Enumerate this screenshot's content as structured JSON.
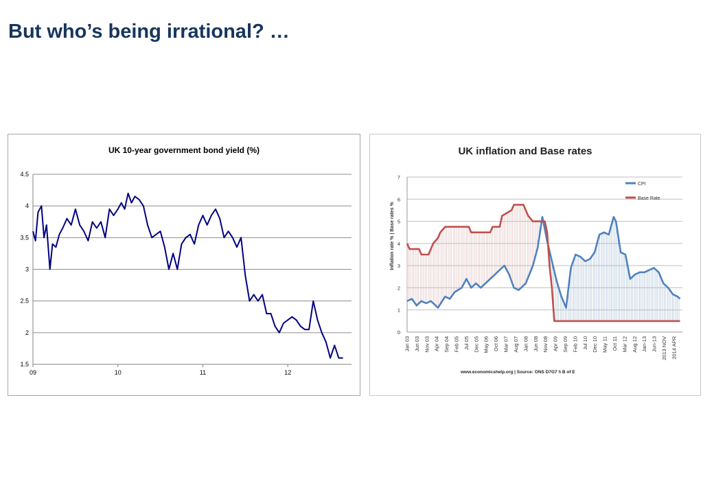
{
  "slide": {
    "title": "But who’s being irrational? …"
  },
  "chart_data": [
    {
      "type": "line",
      "title": "UK 10-year government bond yield (%)",
      "xlabel": "",
      "ylabel": "",
      "x_ticks": [
        "09",
        "10",
        "11",
        "12"
      ],
      "x_tick_values": [
        2009,
        2010,
        2011,
        2012
      ],
      "xlim": [
        2009,
        2012.75
      ],
      "ylim": [
        1.5,
        4.5
      ],
      "y_ticks": [
        "1.5",
        "2",
        "2.5",
        "3",
        "3.5",
        "4",
        "4.5"
      ],
      "y_tick_values": [
        1.5,
        2,
        2.5,
        3,
        3.5,
        4,
        4.5
      ],
      "grid": true,
      "series": [
        {
          "color": "#000080",
          "x": [
            2009.0,
            2009.03,
            2009.06,
            2009.1,
            2009.13,
            2009.16,
            2009.2,
            2009.23,
            2009.27,
            2009.31,
            2009.35,
            2009.4,
            2009.45,
            2009.5,
            2009.55,
            2009.6,
            2009.65,
            2009.7,
            2009.75,
            2009.8,
            2009.85,
            2009.9,
            2009.95,
            2010.0,
            2010.04,
            2010.08,
            2010.12,
            2010.16,
            2010.2,
            2010.25,
            2010.3,
            2010.35,
            2010.4,
            2010.45,
            2010.5,
            2010.55,
            2010.6,
            2010.65,
            2010.7,
            2010.75,
            2010.8,
            2010.85,
            2010.9,
            2010.95,
            2011.0,
            2011.05,
            2011.1,
            2011.15,
            2011.2,
            2011.25,
            2011.3,
            2011.35,
            2011.4,
            2011.45,
            2011.5,
            2011.55,
            2011.6,
            2011.65,
            2011.7,
            2011.75,
            2011.8,
            2011.85,
            2011.9,
            2011.95,
            2012.0,
            2012.05,
            2012.1,
            2012.15,
            2012.2,
            2012.25,
            2012.3,
            2012.35,
            2012.4,
            2012.45,
            2012.5,
            2012.55,
            2012.6,
            2012.65
          ],
          "y": [
            3.6,
            3.45,
            3.9,
            4.0,
            3.5,
            3.7,
            3.0,
            3.4,
            3.35,
            3.55,
            3.65,
            3.8,
            3.7,
            3.95,
            3.7,
            3.6,
            3.45,
            3.75,
            3.65,
            3.75,
            3.5,
            3.95,
            3.85,
            3.95,
            4.05,
            3.95,
            4.2,
            4.05,
            4.15,
            4.1,
            4.0,
            3.7,
            3.5,
            3.55,
            3.6,
            3.35,
            3.0,
            3.25,
            3.0,
            3.4,
            3.5,
            3.55,
            3.4,
            3.7,
            3.85,
            3.7,
            3.85,
            3.95,
            3.8,
            3.5,
            3.6,
            3.5,
            3.35,
            3.5,
            2.9,
            2.5,
            2.6,
            2.5,
            2.6,
            2.3,
            2.3,
            2.1,
            2.0,
            2.15,
            2.2,
            2.25,
            2.2,
            2.1,
            2.05,
            2.05,
            2.5,
            2.2,
            2.0,
            1.85,
            1.6,
            1.8,
            1.6,
            1.6
          ]
        }
      ]
    },
    {
      "type": "line",
      "title": "UK inflation and Base rates",
      "xlabel": "",
      "ylabel": "Inflation rate %  |  Base rates %",
      "ylim": [
        0,
        7
      ],
      "y_ticks": [
        "0",
        "1",
        "2",
        "3",
        "4",
        "5",
        "6",
        "7"
      ],
      "y_tick_values": [
        0,
        1,
        2,
        3,
        4,
        5,
        6,
        7
      ],
      "grid": true,
      "legend": "top-right",
      "annotation": "www.economicshelp.org | Source: ONS D7G7 \\\\ B of E",
      "x_ticks": [
        "Jan 03",
        "Jun 03",
        "Nov 03",
        "Apr 04",
        "Sep 04",
        "Feb 05",
        "Jul 05",
        "Dec 05",
        "May 06",
        "Oct 06",
        "Mar 07",
        "Aug 07",
        "Jan 08",
        "Jun 08",
        "Nov 08",
        "Apr 09",
        "Sep 09",
        "Feb 10",
        "Jul 10",
        "Dec 10",
        "May 11",
        "Oct 11",
        "Mar 12",
        "Aug 12",
        "Jan-13",
        "Jun-13",
        "2013 NOV",
        "2014 APR"
      ],
      "x_tick_values": [
        2003.0,
        2003.417,
        2003.833,
        2004.25,
        2004.667,
        2005.083,
        2005.5,
        2005.917,
        2006.333,
        2006.75,
        2007.167,
        2007.583,
        2008.0,
        2008.417,
        2008.833,
        2009.25,
        2009.667,
        2010.083,
        2010.5,
        2010.917,
        2011.333,
        2011.75,
        2012.167,
        2012.583,
        2013.0,
        2013.417,
        2013.833,
        2014.25
      ],
      "xlim": [
        2003.0,
        2014.6
      ],
      "series": [
        {
          "name": "CPI",
          "color": "#4f81bd",
          "x": [
            2003.0,
            2003.2,
            2003.4,
            2003.6,
            2003.8,
            2004.0,
            2004.3,
            2004.6,
            2004.8,
            2005.0,
            2005.3,
            2005.5,
            2005.7,
            2005.9,
            2006.1,
            2006.3,
            2006.5,
            2006.7,
            2006.9,
            2007.1,
            2007.3,
            2007.5,
            2007.7,
            2008.0,
            2008.3,
            2008.5,
            2008.7,
            2008.9,
            2009.1,
            2009.3,
            2009.5,
            2009.7,
            2009.9,
            2010.1,
            2010.3,
            2010.5,
            2010.7,
            2010.9,
            2011.1,
            2011.3,
            2011.5,
            2011.7,
            2011.8,
            2012.0,
            2012.2,
            2012.4,
            2012.6,
            2012.8,
            2013.0,
            2013.2,
            2013.4,
            2013.6,
            2013.8,
            2014.0,
            2014.2,
            2014.4,
            2014.5
          ],
          "y": [
            1.4,
            1.5,
            1.2,
            1.4,
            1.3,
            1.4,
            1.1,
            1.6,
            1.5,
            1.8,
            2.0,
            2.4,
            2.0,
            2.2,
            2.0,
            2.2,
            2.4,
            2.6,
            2.8,
            3.0,
            2.6,
            2.0,
            1.9,
            2.2,
            3.0,
            3.8,
            5.2,
            4.1,
            3.2,
            2.3,
            1.6,
            1.1,
            2.9,
            3.5,
            3.4,
            3.2,
            3.3,
            3.6,
            4.4,
            4.5,
            4.4,
            5.2,
            5.0,
            3.6,
            3.5,
            2.4,
            2.6,
            2.7,
            2.7,
            2.8,
            2.9,
            2.7,
            2.2,
            2.0,
            1.7,
            1.6,
            1.5
          ]
        },
        {
          "name": "Base Rate",
          "color": "#c0504d",
          "x": [
            2003.0,
            2003.1,
            2003.5,
            2003.6,
            2003.9,
            2004.0,
            2004.1,
            2004.3,
            2004.4,
            2004.6,
            2005.6,
            2005.7,
            2006.5,
            2006.6,
            2006.9,
            2007.0,
            2007.4,
            2007.5,
            2007.9,
            2008.0,
            2008.1,
            2008.3,
            2008.8,
            2008.9,
            2009.0,
            2009.1,
            2009.2,
            2014.5
          ],
          "y": [
            4.0,
            3.75,
            3.75,
            3.5,
            3.5,
            3.75,
            4.0,
            4.25,
            4.5,
            4.75,
            4.75,
            4.5,
            4.5,
            4.75,
            4.75,
            5.25,
            5.5,
            5.75,
            5.75,
            5.5,
            5.25,
            5.0,
            5.0,
            4.5,
            3.0,
            2.0,
            0.5,
            0.5
          ]
        }
      ]
    }
  ]
}
